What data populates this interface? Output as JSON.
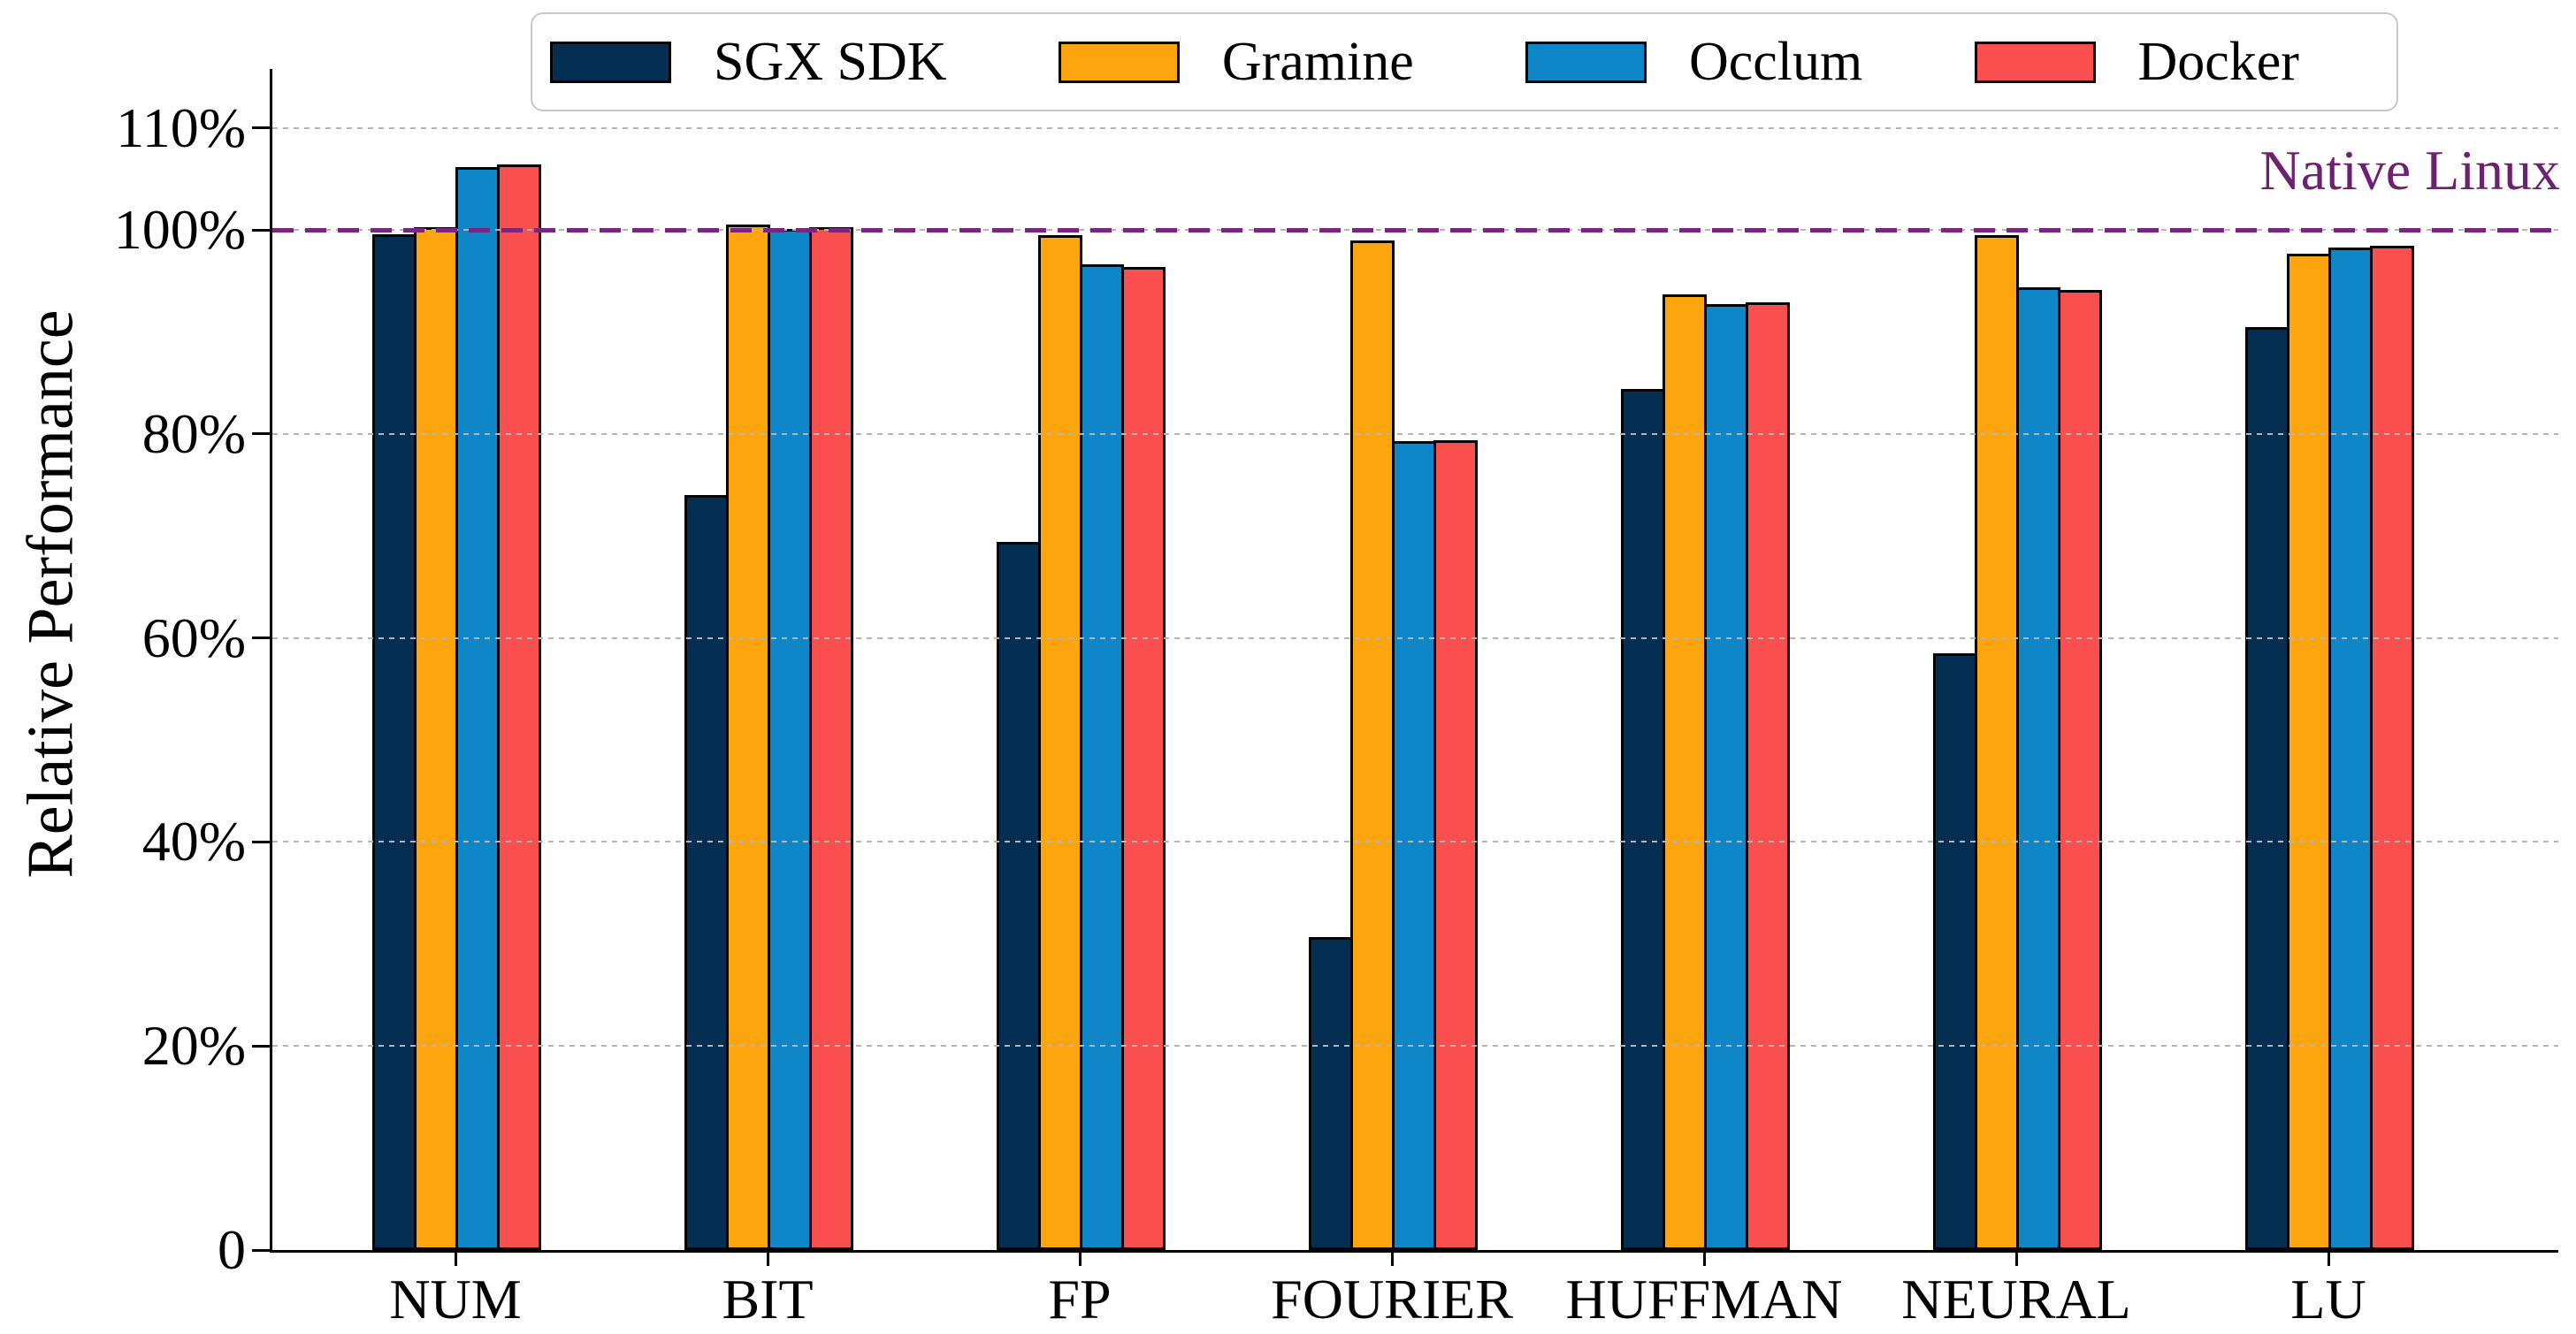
{
  "chart_data": {
    "type": "bar",
    "title": "",
    "ylabel": "Relative Performance",
    "xlabel": "",
    "categories": [
      "NUM",
      "BIT",
      "FP",
      "FOURIER",
      "HUFFMAN",
      "NEURAL",
      "LU"
    ],
    "series": [
      {
        "name": "SGX SDK",
        "color": "#042e52",
        "values": [
          99.6,
          74.0,
          69.4,
          30.7,
          84.4,
          58.5,
          90.5
        ]
      },
      {
        "name": "Gramine",
        "color": "#fda50f",
        "values": [
          100.3,
          100.5,
          99.5,
          99.0,
          93.7,
          99.5,
          97.7
        ]
      },
      {
        "name": "Occlum",
        "color": "#0f86c8",
        "values": [
          106.2,
          100.1,
          96.6,
          79.3,
          92.7,
          94.4,
          98.3
        ]
      },
      {
        "name": "Docker",
        "color": "#fa4f4f",
        "values": [
          106.4,
          100.3,
          96.4,
          79.4,
          92.9,
          94.1,
          98.5
        ]
      }
    ],
    "y_ticks": [
      {
        "value": 110,
        "label": "110%"
      },
      {
        "value": 100,
        "label": "100%"
      },
      {
        "value": 80,
        "label": "80%"
      },
      {
        "value": 60,
        "label": "60%"
      },
      {
        "value": 40,
        "label": "40%"
      },
      {
        "value": 20,
        "label": "20%"
      },
      {
        "value": 0,
        "label": "0"
      }
    ],
    "gridlines": [
      20,
      40,
      60,
      80,
      100,
      110
    ],
    "ylim": [
      0,
      116
    ],
    "grid_on": true,
    "grid_color": "#b5b5b5",
    "bar_edge_color": "#000000",
    "legend_position": "top",
    "legend_border_color": "#c9c9c9",
    "reference_line": {
      "value": 100,
      "label": "Native Linux",
      "line_color": "#7a2580",
      "text_color": "#6d2170"
    }
  }
}
